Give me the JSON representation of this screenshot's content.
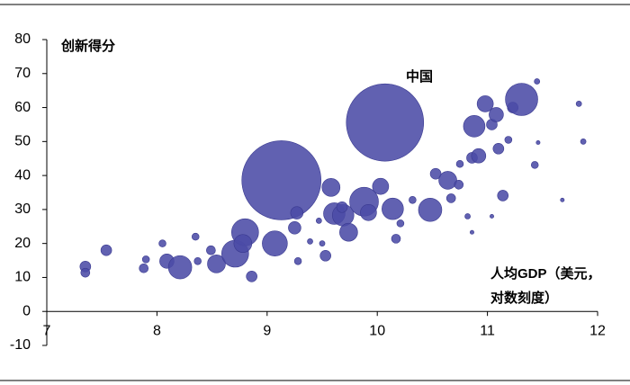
{
  "chart_data": {
    "type": "bubble",
    "y_label": "创新得分",
    "x_label": [
      "人均GDP（美元，",
      "对数刻度）"
    ],
    "annotation": "中国",
    "color": "#4b4ba6",
    "xlim": [
      7,
      12
    ],
    "xticks": [
      7,
      8,
      9,
      10,
      11,
      12
    ],
    "ylim": [
      -10,
      80
    ],
    "yticks": [
      -10,
      0,
      10,
      20,
      30,
      40,
      50,
      60,
      70,
      80
    ],
    "x": [
      10.07,
      9.13,
      7.35,
      7.35,
      7.54,
      7.88,
      7.9,
      8.05,
      8.09,
      8.21,
      8.35,
      8.37,
      8.49,
      8.54,
      8.71,
      8.8,
      8.78,
      8.86,
      9.07,
      9.25,
      9.27,
      9.28,
      9.39,
      9.47,
      9.5,
      9.53,
      9.58,
      9.61,
      9.69,
      9.74,
      9.68,
      9.88,
      9.92,
      10.03,
      10.14,
      10.17,
      10.21,
      10.32,
      10.48,
      10.53,
      10.64,
      10.67,
      10.74,
      10.75,
      10.86,
      10.92,
      10.88,
      10.98,
      11.04,
      11.08,
      11.1,
      11.23,
      11.31,
      11.19,
      11.14,
      11.43,
      10.82,
      10.86,
      11.04,
      11.68,
      11.83,
      11.87,
      11.45,
      11.46
    ],
    "values": [
      55.6,
      38.6,
      13.2,
      11.4,
      18,
      12.7,
      15.3,
      20,
      14.8,
      13,
      22,
      14.8,
      18,
      14,
      17,
      23.3,
      20,
      10.3,
      20,
      24.6,
      29,
      14.8,
      20.6,
      26.7,
      20,
      16.4,
      36.5,
      28.8,
      28.3,
      23.3,
      30.7,
      32.3,
      29.1,
      36.8,
      30.2,
      21.4,
      25.9,
      32.8,
      29.9,
      40.5,
      38.6,
      33.3,
      37.3,
      43.4,
      45.2,
      45.8,
      54.5,
      61.1,
      55,
      57.9,
      47.9,
      60,
      62.4,
      50.5,
      34.1,
      43.1,
      28,
      23.3,
      28,
      32.8,
      61.1,
      50,
      67.7,
      49.7
    ],
    "sizes": [
      1183,
      1239,
      23,
      16,
      23,
      16,
      10,
      10,
      41,
      108,
      10,
      10,
      16,
      64,
      144,
      144,
      64,
      23,
      125,
      31,
      31,
      10,
      6,
      6,
      6,
      23,
      64,
      92,
      92,
      64,
      23,
      164,
      52,
      52,
      92,
      16,
      10,
      10,
      108,
      23,
      64,
      16,
      16,
      10,
      23,
      41,
      92,
      52,
      23,
      41,
      23,
      23,
      207,
      10,
      23,
      10,
      6,
      3,
      3,
      3,
      6,
      6,
      6,
      3
    ]
  }
}
